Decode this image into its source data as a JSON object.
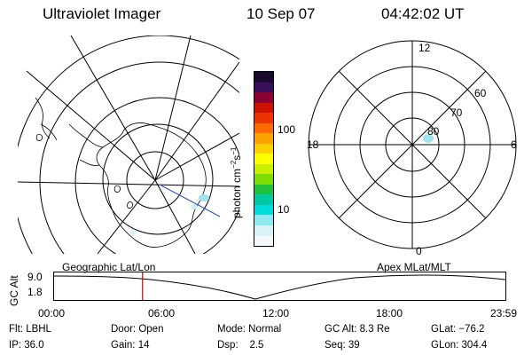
{
  "header": {
    "instrument": "Ultraviolet Imager",
    "date": "10 Sep 07",
    "time": "04:42:02 UT"
  },
  "colorbar": {
    "unit_label": "photon cm",
    "unit_exp1": "−2",
    "unit_mid": "s",
    "unit_exp2": "−1",
    "ticks": [
      "100",
      "10"
    ],
    "colors": [
      "#1a0a2e",
      "#3a0f5a",
      "#8b0033",
      "#cc1100",
      "#ee3300",
      "#ff6a00",
      "#ffa200",
      "#ffd000",
      "#ffff00",
      "#c8f000",
      "#7ddc00",
      "#1ec23c",
      "#00c8a0",
      "#00dcdc",
      "#8fe8f0",
      "#d8f2f6",
      "#f4f8fa"
    ]
  },
  "left_panel": {
    "name": "Geographic Lat/Lon"
  },
  "right_panel": {
    "name": "Apex MLat/MLT",
    "mlt_labels": {
      "top": "12",
      "bottom": "0",
      "left": "18",
      "right": "6"
    },
    "lat_labels": [
      "60",
      "70",
      "80"
    ]
  },
  "timeline": {
    "ylabel": "GC Alt",
    "yticks": [
      "9.0",
      "1.8"
    ],
    "xticks": [
      "00:00",
      "06:00",
      "12:00",
      "18:00",
      "23:59"
    ],
    "current_time_fraction": 0.196,
    "marker_color": "#cc0000"
  },
  "footer": {
    "filter_label": "Flt:",
    "filter_value": "LBHL",
    "ip_label": "IP:",
    "ip_value": "36.0",
    "door_label": "Door:",
    "door_value": "Open",
    "gain_label": "Gain:",
    "gain_value": "14",
    "mode_label": "Mode:",
    "mode_value": "Normal",
    "dsp_label": "Dsp:",
    "dsp_value": "2.5",
    "gcalt_label": "GC Alt:",
    "gcalt_value": "8.3 Re",
    "seq_label": "Seq:",
    "seq_value": "39",
    "glat_label": "GLat:",
    "glat_value": "−76.2",
    "glon_label": "GLon:",
    "glon_value": "304.4"
  }
}
